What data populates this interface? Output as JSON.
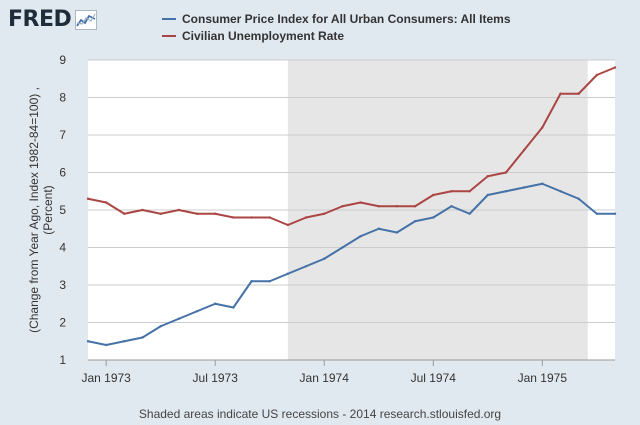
{
  "header": {
    "logo_text": "FRED",
    "logo_icon": "line-chart-badge-icon"
  },
  "colors": {
    "background": "#e1e9f0",
    "plot_background": "#ffffff",
    "recession_shade": "#e6e6e6",
    "cpi": "#4572a7",
    "unemployment": "#aa4643",
    "grid": "#cccccc"
  },
  "footer": {
    "note": "Shaded areas indicate US recessions - 2014 research.stlouisfed.org"
  },
  "chart_data": {
    "type": "line",
    "title": "",
    "xlabel": "",
    "ylabel": "(Change from Year Ago, Index 1982-84=100) , (Percent)",
    "ylabel_lines": [
      "(Change from Year Ago, Index 1982-84=100) ,",
      "(Percent)"
    ],
    "ylim": [
      1,
      9
    ],
    "yticks": [
      1,
      2,
      3,
      4,
      5,
      6,
      7,
      8,
      9
    ],
    "xlim": [
      0,
      29
    ],
    "x_ticks": [
      {
        "x": 1,
        "label": "Jan 1973"
      },
      {
        "x": 7,
        "label": "Jul 1973"
      },
      {
        "x": 13,
        "label": "Jan 1974"
      },
      {
        "x": 19,
        "label": "Jul 1974"
      },
      {
        "x": 25,
        "label": "Jan 1975"
      }
    ],
    "recession": {
      "start": 11,
      "end": 27.5
    },
    "x": [
      0,
      1,
      2,
      3,
      4,
      5,
      6,
      7,
      8,
      9,
      10,
      11,
      12,
      13,
      14,
      15,
      16,
      17,
      18,
      19,
      20,
      21,
      22,
      23,
      24,
      25,
      26,
      27,
      28,
      29
    ],
    "series": [
      {
        "name": "Consumer Price Index for All Urban Consumers: All Items",
        "color": "#4572a7",
        "values": [
          1.5,
          1.4,
          1.5,
          1.6,
          1.9,
          2.1,
          2.3,
          2.5,
          2.4,
          3.1,
          3.1,
          3.3,
          3.5,
          3.7,
          4.0,
          4.3,
          4.5,
          4.4,
          4.7,
          4.8,
          5.1,
          4.9,
          5.4,
          5.5,
          5.6,
          5.7,
          5.5,
          5.3,
          4.9,
          4.9
        ]
      },
      {
        "name": "Civilian Unemployment Rate",
        "color": "#aa4643",
        "values": [
          5.3,
          5.2,
          4.9,
          5.0,
          4.9,
          5.0,
          4.9,
          4.9,
          4.8,
          4.8,
          4.8,
          4.6,
          4.8,
          4.9,
          5.1,
          5.2,
          5.1,
          5.1,
          5.1,
          5.4,
          5.5,
          5.5,
          5.9,
          6.0,
          6.6,
          7.2,
          8.1,
          8.1,
          8.6,
          8.8
        ]
      }
    ]
  }
}
